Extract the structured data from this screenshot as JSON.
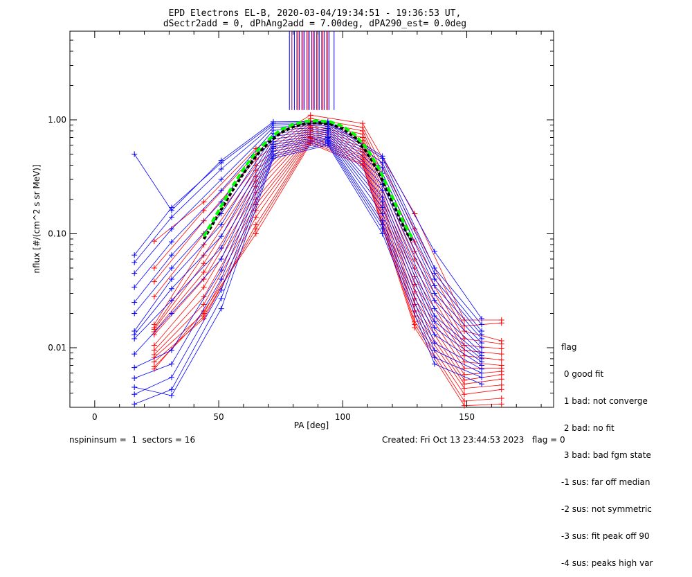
{
  "title_line1": "EPD Electrons EL-B, 2020-03-04/19:34:51 - 19:36:53 UT,",
  "title_line2": "dSectr2add = 0, dPhAng2add = 7.00deg, dPA290_est=    0.0deg",
  "footer_left": "nspininsum =  1  sectors = 16",
  "footer_right": "Created: Fri Oct 13 23:44:53 2023   flag = 0",
  "legend": {
    "title": "flag",
    "items": [
      " 0 good fit",
      " 1 bad: not converge",
      " 2 bad: no fit",
      " 3 bad: bad fgm state",
      "-1 sus: far off median",
      "-2 sus: not symmetric",
      "-3 sus: fit peak off 90",
      "-4 sus: peaks high var"
    ]
  },
  "colors": {
    "blue": "#0000ff",
    "red": "#ff0000",
    "black": "#000000",
    "green": "#00ff00",
    "purple": "#7f007f"
  },
  "chart_data": {
    "type": "line",
    "xlabel": "PA [deg]",
    "ylabel": "nflux [#/(cm^2 s sr MeV)]",
    "x_ticks": [
      "0",
      "50",
      "100",
      "150"
    ],
    "y_ticks": [
      "0.01",
      "0.10",
      "1.00"
    ],
    "xlim": [
      -10,
      185
    ],
    "ylim": [
      0.003,
      6.0
    ],
    "y_scale": "log",
    "blue_sweeps": [
      {
        "x": [
          16,
          31,
          51,
          72,
          94,
          116,
          137,
          156
        ],
        "y": [
          0.5,
          0.16,
          0.44,
          0.96,
          0.97,
          0.48,
          0.07,
          0.018
        ]
      },
      {
        "x": [
          16,
          31,
          51,
          72,
          94,
          116,
          137,
          156
        ],
        "y": [
          0.065,
          0.17,
          0.42,
          0.93,
          0.95,
          0.46,
          0.05,
          0.016
        ]
      },
      {
        "x": [
          16,
          31,
          51,
          72,
          94,
          116,
          137,
          156
        ],
        "y": [
          0.056,
          0.14,
          0.37,
          0.9,
          0.93,
          0.42,
          0.045,
          0.014
        ]
      },
      {
        "x": [
          16,
          31,
          51,
          72,
          94,
          116,
          137,
          156
        ],
        "y": [
          0.045,
          0.11,
          0.3,
          0.86,
          0.9,
          0.38,
          0.04,
          0.013
        ]
      },
      {
        "x": [
          16,
          31,
          51,
          72,
          94,
          116,
          137,
          156
        ],
        "y": [
          0.034,
          0.085,
          0.24,
          0.81,
          0.87,
          0.34,
          0.035,
          0.012
        ]
      },
      {
        "x": [
          16,
          31,
          51,
          72,
          94,
          116,
          137,
          156
        ],
        "y": [
          0.025,
          0.065,
          0.19,
          0.76,
          0.84,
          0.3,
          0.03,
          0.011
        ]
      },
      {
        "x": [
          16,
          31,
          51,
          72,
          94,
          116,
          137,
          156
        ],
        "y": [
          0.02,
          0.05,
          0.15,
          0.72,
          0.81,
          0.27,
          0.026,
          0.01
        ]
      },
      {
        "x": [
          16,
          31,
          51,
          72,
          94,
          116,
          137,
          156
        ],
        "y": [
          0.014,
          0.04,
          0.12,
          0.68,
          0.78,
          0.24,
          0.022,
          0.009
        ]
      },
      {
        "x": [
          16,
          31,
          51,
          72,
          94,
          116,
          137,
          156
        ],
        "y": [
          0.013,
          0.033,
          0.095,
          0.64,
          0.75,
          0.21,
          0.019,
          0.0085
        ]
      },
      {
        "x": [
          16,
          31,
          51,
          72,
          94,
          116,
          137,
          156
        ],
        "y": [
          0.012,
          0.026,
          0.075,
          0.61,
          0.72,
          0.19,
          0.017,
          0.008
        ]
      },
      {
        "x": [
          16,
          31,
          51,
          72,
          94,
          116,
          137,
          156
        ],
        "y": [
          0.0088,
          0.02,
          0.06,
          0.58,
          0.7,
          0.17,
          0.015,
          0.0075
        ]
      },
      {
        "x": [
          16,
          31,
          51,
          72,
          94,
          116,
          137,
          156
        ],
        "y": [
          0.0067,
          0.0095,
          0.048,
          0.56,
          0.68,
          0.15,
          0.013,
          0.007
        ]
      },
      {
        "x": [
          16,
          31,
          51,
          72,
          94,
          116,
          137,
          156
        ],
        "y": [
          0.0054,
          0.0072,
          0.04,
          0.53,
          0.66,
          0.13,
          0.011,
          0.0065
        ]
      },
      {
        "x": [
          16,
          31,
          51,
          72,
          94,
          116,
          137,
          156
        ],
        "y": [
          0.0039,
          0.0055,
          0.032,
          0.5,
          0.64,
          0.12,
          0.0095,
          0.006
        ]
      },
      {
        "x": [
          16,
          31,
          51,
          72,
          94,
          116,
          137,
          156
        ],
        "y": [
          0.0032,
          0.0043,
          0.027,
          0.48,
          0.62,
          0.11,
          0.0082,
          0.0055
        ]
      },
      {
        "x": [
          16,
          31,
          51,
          72,
          94,
          116,
          137,
          156
        ],
        "y": [
          0.0045,
          0.0038,
          0.022,
          0.46,
          0.6,
          0.1,
          0.0072,
          0.0048
        ]
      }
    ],
    "red_sweeps": [
      {
        "x": [
          24,
          44,
          65,
          87,
          108,
          129,
          149,
          164
        ],
        "y": [
          0.086,
          0.19,
          0.56,
          1.1,
          0.93,
          0.15,
          0.0175,
          0.0175
        ]
      },
      {
        "x": [
          24,
          44,
          65,
          87,
          108,
          129,
          149,
          164
        ],
        "y": [
          0.05,
          0.16,
          0.5,
          1.03,
          0.86,
          0.11,
          0.0155,
          0.0165
        ]
      },
      {
        "x": [
          24,
          44,
          65,
          87,
          108,
          129,
          149,
          164
        ],
        "y": [
          0.038,
          0.13,
          0.45,
          0.98,
          0.8,
          0.085,
          0.014,
          0.0115
        ]
      },
      {
        "x": [
          24,
          44,
          65,
          87,
          108,
          129,
          149,
          164
        ],
        "y": [
          0.028,
          0.1,
          0.4,
          0.94,
          0.75,
          0.07,
          0.012,
          0.0108
        ]
      },
      {
        "x": [
          24,
          44,
          65,
          87,
          108,
          129,
          149,
          164
        ],
        "y": [
          0.016,
          0.08,
          0.36,
          0.9,
          0.7,
          0.06,
          0.0105,
          0.0098
        ]
      },
      {
        "x": [
          24,
          44,
          65,
          87,
          108,
          129,
          149,
          164
        ],
        "y": [
          0.015,
          0.065,
          0.32,
          0.87,
          0.66,
          0.05,
          0.0095,
          0.0088
        ]
      },
      {
        "x": [
          24,
          44,
          65,
          87,
          108,
          129,
          149,
          164
        ],
        "y": [
          0.0145,
          0.055,
          0.29,
          0.84,
          0.62,
          0.042,
          0.0085,
          0.0078
        ]
      },
      {
        "x": [
          24,
          44,
          65,
          87,
          108,
          129,
          149,
          164
        ],
        "y": [
          0.0138,
          0.046,
          0.26,
          0.81,
          0.58,
          0.036,
          0.0075,
          0.007
        ]
      },
      {
        "x": [
          24,
          44,
          65,
          87,
          108,
          129,
          149,
          164
        ],
        "y": [
          0.013,
          0.04,
          0.23,
          0.78,
          0.55,
          0.031,
          0.0066,
          0.0066
        ]
      },
      {
        "x": [
          24,
          44,
          65,
          87,
          108,
          129,
          149,
          164
        ],
        "y": [
          0.0105,
          0.034,
          0.2,
          0.75,
          0.52,
          0.027,
          0.0058,
          0.0062
        ]
      },
      {
        "x": [
          24,
          44,
          65,
          87,
          108,
          129,
          149,
          164
        ],
        "y": [
          0.0095,
          0.028,
          0.18,
          0.72,
          0.49,
          0.024,
          0.0052,
          0.0058
        ]
      },
      {
        "x": [
          24,
          44,
          65,
          87,
          108,
          129,
          149,
          164
        ],
        "y": [
          0.0087,
          0.024,
          0.16,
          0.7,
          0.47,
          0.021,
          0.0048,
          0.0053
        ]
      },
      {
        "x": [
          24,
          44,
          65,
          87,
          108,
          129,
          149,
          164
        ],
        "y": [
          0.0082,
          0.02,
          0.14,
          0.68,
          0.45,
          0.019,
          0.0044,
          0.0047
        ]
      },
      {
        "x": [
          24,
          44,
          65,
          87,
          108,
          129,
          149,
          164
        ],
        "y": [
          0.0075,
          0.018,
          0.12,
          0.66,
          0.43,
          0.017,
          0.0039,
          0.0043
        ]
      },
      {
        "x": [
          24,
          44,
          65,
          87,
          108,
          129,
          149,
          164
        ],
        "y": [
          0.0068,
          0.019,
          0.11,
          0.64,
          0.41,
          0.016,
          0.0034,
          0.0036
        ]
      },
      {
        "x": [
          24,
          44,
          65,
          87,
          108,
          129,
          149,
          164
        ],
        "y": [
          0.0065,
          0.021,
          0.1,
          0.62,
          0.4,
          0.015,
          0.0031,
          0.0032
        ]
      }
    ],
    "fit_median": {
      "x": [
        44,
        50,
        55,
        60,
        65,
        70,
        75,
        80,
        85,
        90,
        95,
        100,
        105,
        110,
        115,
        120,
        125,
        128
      ],
      "y": [
        0.09,
        0.15,
        0.23,
        0.34,
        0.48,
        0.63,
        0.77,
        0.87,
        0.93,
        0.94,
        0.92,
        0.84,
        0.7,
        0.51,
        0.33,
        0.19,
        0.11,
        0.085
      ]
    },
    "fit_green": {
      "x": [
        44,
        50,
        55,
        60,
        65,
        70,
        75,
        80,
        85,
        90,
        95,
        100,
        105,
        110,
        115,
        120,
        125,
        128
      ],
      "y": [
        0.095,
        0.16,
        0.25,
        0.37,
        0.52,
        0.67,
        0.82,
        0.91,
        0.97,
        0.98,
        0.96,
        0.88,
        0.74,
        0.55,
        0.36,
        0.21,
        0.12,
        0.092
      ]
    },
    "peak_markers": {
      "blue_x": [
        78.5,
        80.5,
        82.5,
        84.5,
        86.5,
        88.5,
        90.5,
        92.5,
        94.5,
        96.5
      ],
      "purple_x": [
        79.5,
        81.5,
        83.5,
        85.5,
        87.5,
        89.5,
        91.5,
        93.5
      ],
      "red_x": [
        82,
        84,
        86,
        88,
        90,
        92,
        94
      ],
      "y_bottom": 1.22
    }
  }
}
